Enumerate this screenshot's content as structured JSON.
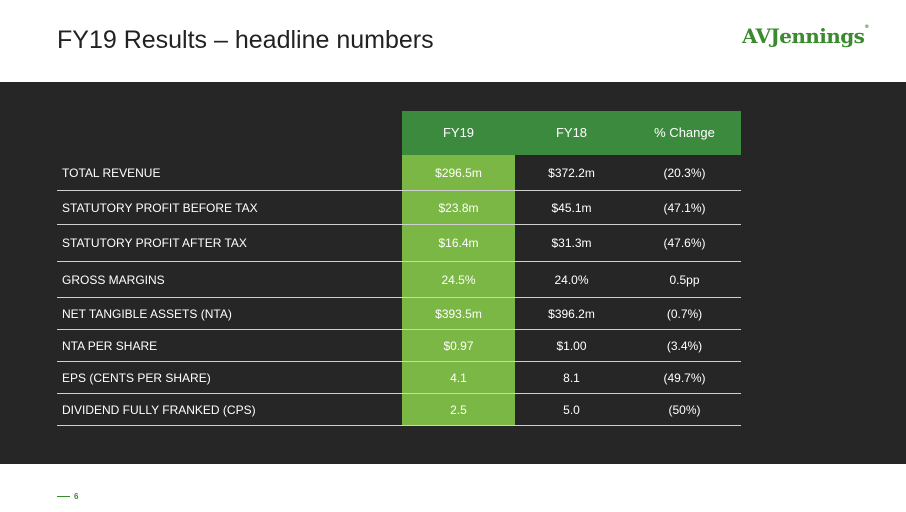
{
  "slide": {
    "title": "FY19 Results – headline numbers",
    "logo_text": "AVJennings",
    "logo_mark": "®",
    "page_number": "6"
  },
  "table": {
    "headers": [
      "FY19",
      "FY18",
      "% Change"
    ],
    "rows": [
      {
        "label": "TOTAL REVENUE",
        "fy19": "$296.5m",
        "fy18": "$372.2m",
        "change": "(20.3%)"
      },
      {
        "label": "STATUTORY PROFIT BEFORE TAX",
        "fy19": "$23.8m",
        "fy18": "$45.1m",
        "change": "(47.1%)"
      },
      {
        "label": "STATUTORY PROFIT AFTER TAX",
        "fy19": "$16.4m",
        "fy18": "$31.3m",
        "change": "(47.6%)"
      },
      {
        "label": "GROSS MARGINS",
        "fy19": "24.5%",
        "fy18": "24.0%",
        "change": "0.5pp"
      },
      {
        "label": "NET TANGIBLE ASSETS (NTA)",
        "fy19": "$393.5m",
        "fy18": "$396.2m",
        "change": "(0.7%)"
      },
      {
        "label": "NTA PER SHARE",
        "fy19": "$0.97",
        "fy18": "$1.00",
        "change": "(3.4%)"
      },
      {
        "label": "EPS (CENTS PER SHARE)",
        "fy19": "4.1",
        "fy18": "8.1",
        "change": "(49.7%)"
      },
      {
        "label": "DIVIDEND FULLY FRANKED (CPS)",
        "fy19": "2.5",
        "fy18": "5.0",
        "change": "(50%)"
      }
    ]
  },
  "colors": {
    "header_green": "#3c8a3e",
    "highlight_green": "#7ab744",
    "panel_dark": "#262626",
    "brand_green": "#3a8a2e"
  }
}
